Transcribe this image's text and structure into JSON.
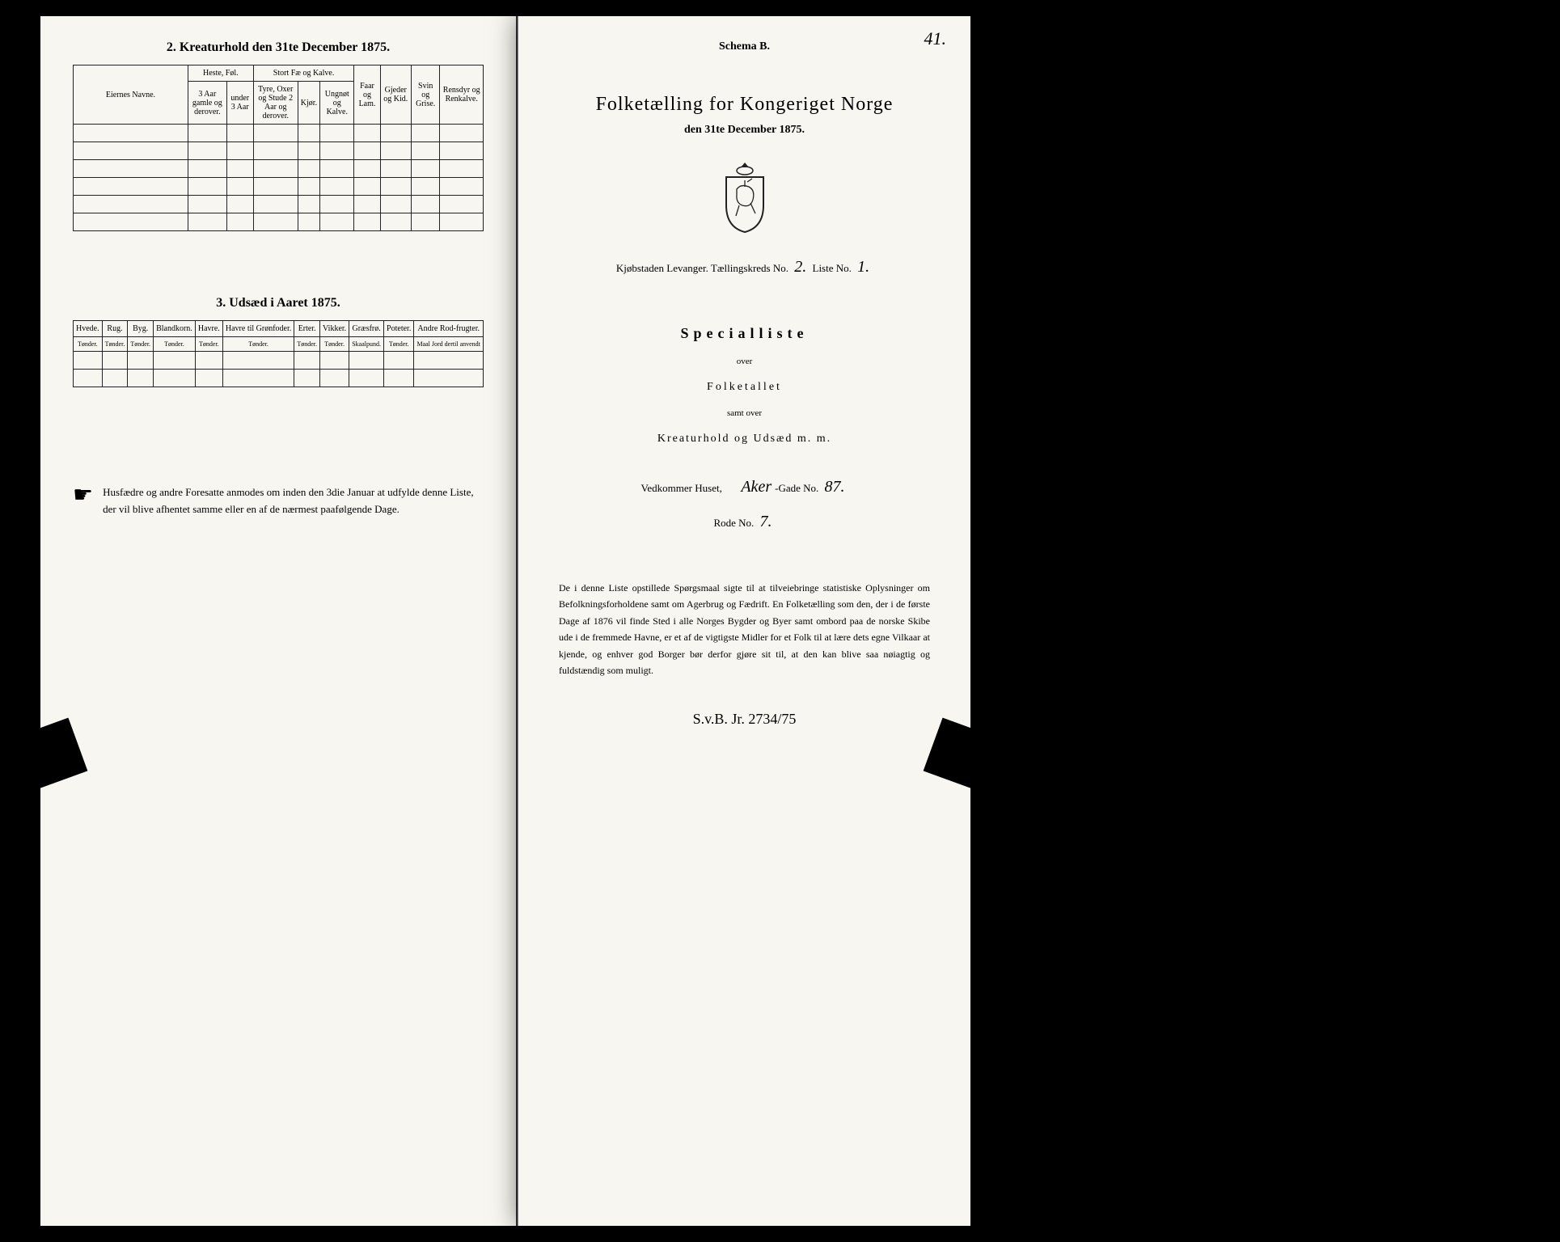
{
  "page_number": "41.",
  "left": {
    "section2_title": "2.  Kreaturhold den 31te December 1875.",
    "table2": {
      "group_headers": [
        "Eiernes Navne.",
        "Heste, Føl.",
        "Stort Fæ og Kalve.",
        "Faar og Lam.",
        "Gjeder og Kid.",
        "Svin og Grise.",
        "Rensdyr og Renkalve."
      ],
      "sub_headers": [
        "3 Aar gamle og derover.",
        "under 3 Aar",
        "Tyre, Oxer og Stude 2 Aar og derover.",
        "Kjør.",
        "Ungnøt og Kalve."
      ]
    },
    "section3_title": "3.  Udsæd i Aaret 1875.",
    "table3": {
      "headers": [
        "Hvede.",
        "Rug.",
        "Byg.",
        "Blandkorn.",
        "Havre.",
        "Havre til Grønfoder.",
        "Erter.",
        "Vikker.",
        "Græsfrø.",
        "Poteter.",
        "Andre Rod-frugter."
      ],
      "units": [
        "Tønder.",
        "Tønder.",
        "Tønder.",
        "Tønder.",
        "Tønder.",
        "Tønder.",
        "Tønder.",
        "Tønder.",
        "Skaalpund.",
        "Tønder.",
        "Maal Jord dertil anvendt"
      ]
    },
    "footer": "Husfædre og andre Foresatte anmodes om inden den 3die Januar at udfylde denne Liste, der vil blive afhentet samme eller en af de nærmest paafølgende Dage."
  },
  "right": {
    "schema": "Schema B.",
    "title": "Folketælling for Kongeriget Norge",
    "subtitle": "den 31te December 1875.",
    "fill_prefix": "Kjøbstaden Levanger.    Tællingskreds No.",
    "fill_kreds": "2.",
    "fill_mid": "    Liste No.",
    "fill_liste": "1.",
    "specialliste": "Specialliste",
    "over1": "over",
    "folketallet": "Folketallet",
    "over2": "samt over",
    "kreatur": "Kreaturhold og Udsæd m. m.",
    "vedkommer_label": "Vedkommer Huset,",
    "gade_hand": "Aker",
    "gade_suffix": "-Gade No.",
    "gade_no": "87.",
    "rode_label": "Rode No.",
    "rode_no": "7.",
    "bottom": "De i denne Liste opstillede Spørgsmaal sigte til at tilveiebringe statistiske Oplysninger om Befolkningsforholdene samt om Agerbrug og Fædrift. En Folketælling som den, der i de første Dage af 1876 vil finde Sted i alle Norges Bygder og Byer samt ombord paa de norske Skibe ude i de fremmede Havne, er et af de vigtigste Midler for et Folk til at lære dets egne Vilkaar at kjende, og enhver god Borger bør derfor gjøre sit til, at den kan blive saa nøiagtig og fuldstændig som muligt.",
    "signature": "S.v.B. Jr. 2734/75"
  },
  "colors": {
    "paper": "#f8f6f0",
    "ink": "#1a1a1a",
    "border": "#222222"
  }
}
